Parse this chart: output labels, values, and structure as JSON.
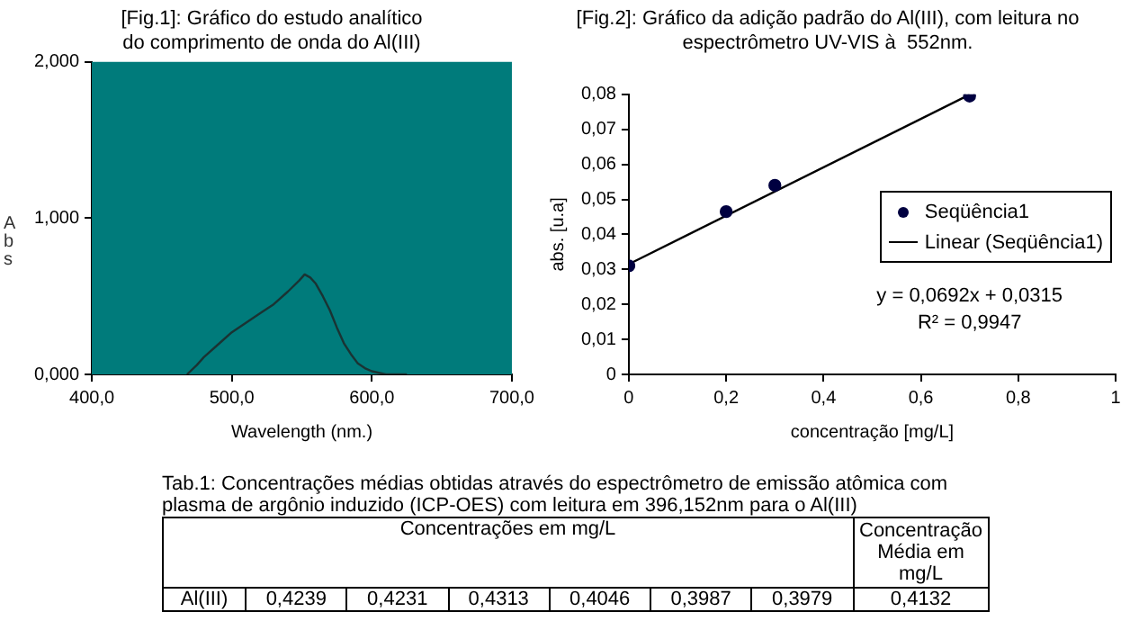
{
  "chart_data": [
    {
      "type": "line",
      "title": [
        "[Fig.1]: Gráfico do estudo analítico",
        "do comprimento de onda do Al(III)"
      ],
      "xlabel": "Wavelength (nm.)",
      "ylabel": "Abs",
      "xlim": [
        400,
        700
      ],
      "xticks": [
        {
          "value": 400,
          "label": "400,0"
        },
        {
          "value": 500,
          "label": "500,0"
        },
        {
          "value": 600,
          "label": "600,0"
        },
        {
          "value": 700,
          "label": "700,0"
        }
      ],
      "ylim": [
        0,
        2
      ],
      "yticks": [
        {
          "value": 0,
          "label": "0,000"
        },
        {
          "value": 1,
          "label": "1,000"
        },
        {
          "value": 2,
          "label": "2,000"
        }
      ],
      "series": [
        {
          "color": "#1a3333",
          "x": [
            468,
            475,
            480,
            490,
            500,
            510,
            520,
            530,
            540,
            548,
            552,
            556,
            560,
            565,
            570,
            575,
            580,
            585,
            590,
            595,
            600,
            605,
            610,
            618,
            625
          ],
          "values": [
            0,
            0.06,
            0.11,
            0.19,
            0.27,
            0.33,
            0.39,
            0.45,
            0.53,
            0.6,
            0.64,
            0.62,
            0.58,
            0.5,
            0.41,
            0.3,
            0.2,
            0.13,
            0.07,
            0.04,
            0.02,
            0.01,
            0,
            0,
            0
          ]
        }
      ],
      "marker": "none",
      "grid": false,
      "legend": false
    },
    {
      "type": "scatter",
      "title": [
        "[Fig.2]: Gráfico da adição padrão do Al(III), com leitura no",
        "espectrômetro UV-VIS à  552nm."
      ],
      "xlabel": "concentração [mg/L]",
      "ylabel": "abs. [u.a]",
      "xlim": [
        0,
        1
      ],
      "xticks": [
        0,
        {
          "value": 0.2,
          "label": "0,2"
        },
        {
          "value": 0.4,
          "label": "0,4"
        },
        {
          "value": 0.6,
          "label": "0,6"
        },
        {
          "value": 0.8,
          "label": "0,8"
        },
        1
      ],
      "ylim": [
        0,
        0.08
      ],
      "yticks": [
        0,
        {
          "value": 0.01,
          "label": "0,01"
        },
        {
          "value": 0.02,
          "label": "0,02"
        },
        {
          "value": 0.03,
          "label": "0,03"
        },
        {
          "value": 0.04,
          "label": "0,04"
        },
        {
          "value": 0.05,
          "label": "0,05"
        },
        {
          "value": 0.06,
          "label": "0,06"
        },
        {
          "value": 0.07,
          "label": "0,07"
        },
        {
          "value": 0.08,
          "label": "0,08"
        }
      ],
      "series": [
        {
          "name": "Seqüência1",
          "color": "#000040",
          "x": [
            0,
            0.2,
            0.3,
            0.7
          ],
          "values": [
            0.031,
            0.0465,
            0.054,
            0.0795
          ],
          "marker": "circle"
        },
        {
          "type": "line",
          "name": "Linear (Seqüência1)",
          "color": "#000000",
          "x": [
            0,
            0.7
          ],
          "values": [
            0.0315,
            0.0799
          ],
          "marker": "none"
        }
      ],
      "annotations": [
        "y = 0,0692x + 0,0315",
        "R² = 0,9947"
      ],
      "grid": false,
      "legend": "right"
    },
    {
      "type": "other",
      "title": [
        "Tab.1:  Concentrações médias obtidas através do espectrômetro de emissão atômica com",
        "plasma de argônio induzido (ICP-OES) com leitura em 396,152nm para o Al(III)"
      ],
      "annotations": [
        "Concentrações em mg/L",
        "Concentração Média em mg/L",
        "Al(III)",
        "0,4239",
        "0,4231",
        "0,4313",
        "0,4046",
        "0,3987",
        "0,3979",
        "0,4132"
      ]
    }
  ]
}
